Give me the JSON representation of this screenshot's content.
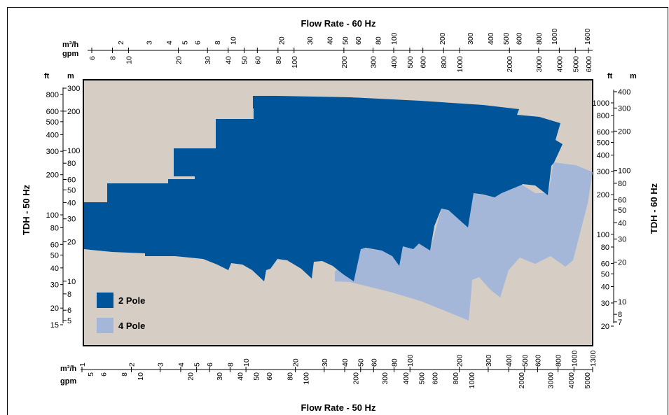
{
  "chart_data": {
    "type": "area",
    "title_top": "Flow Rate - 60 Hz",
    "title_bottom": "Flow Rate - 50 Hz",
    "ylabel_left": "TDH - 50 Hz",
    "ylabel_right": "TDH - 60 Hz",
    "x_scale": "log",
    "y_scale": "log",
    "top_axis": {
      "unit_m3h": "m³/h",
      "unit_gpm": "gpm",
      "m3h_ticks": [
        "2",
        "3",
        "4",
        "5",
        "6",
        "8",
        "10",
        "20",
        "30",
        "40",
        "50",
        "60",
        "80",
        "100",
        "200",
        "300",
        "400",
        "500",
        "600",
        "800",
        "1000",
        "1600"
      ],
      "gpm_ticks": [
        "6",
        "8",
        "10",
        "20",
        "30",
        "40",
        "50",
        "60",
        "80",
        "100",
        "200",
        "300",
        "400",
        "500",
        "600",
        "800",
        "1000",
        "2000",
        "3000",
        "4000",
        "5000",
        "6000"
      ]
    },
    "bottom_axis": {
      "unit_m3h": "m³/h",
      "unit_gpm": "gpm",
      "m3h_ticks": [
        "1",
        "2",
        "3",
        "4",
        "5",
        "6",
        "8",
        "10",
        "20",
        "30",
        "40",
        "50",
        "60",
        "80",
        "100",
        "200",
        "300",
        "400",
        "500",
        "600",
        "800",
        "1000",
        "1300"
      ],
      "gpm_ticks": [
        "5",
        "6",
        "8",
        "10",
        "20",
        "30",
        "40",
        "50",
        "60",
        "80",
        "100",
        "200",
        "300",
        "400",
        "500",
        "600",
        "800",
        "1000",
        "2000",
        "3000",
        "4000",
        "5000"
      ]
    },
    "left_axis": {
      "unit_ft": "ft",
      "unit_m": "m",
      "ft_ticks": [
        "800",
        "600",
        "500",
        "400",
        "300",
        "200",
        "100",
        "80",
        "60",
        "50",
        "40",
        "30",
        "20",
        "15"
      ],
      "m_ticks": [
        "300",
        "200",
        "100",
        "80",
        "60",
        "50",
        "40",
        "30",
        "20",
        "10",
        "8",
        "6",
        "5"
      ]
    },
    "right_axis": {
      "unit_ft": "ft",
      "unit_m": "m",
      "ft_ticks": [
        "1000",
        "800",
        "600",
        "500",
        "400",
        "300",
        "200",
        "100",
        "80",
        "60",
        "50",
        "40",
        "30",
        "20"
      ],
      "m_ticks": [
        "400",
        "300",
        "200",
        "100",
        "80",
        "60",
        "50",
        "40",
        "30",
        "20",
        "10",
        "8",
        "7"
      ]
    },
    "series": [
      {
        "name": "2 Pole",
        "color": "#00559a"
      },
      {
        "name": "4 Pole",
        "color": "#a4b7d9"
      }
    ],
    "background_color": "#d6cdc4"
  }
}
